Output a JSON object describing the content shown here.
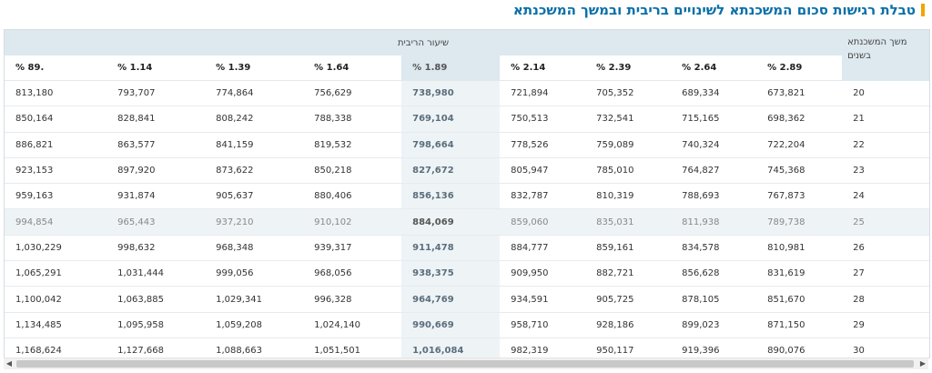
{
  "title": "טבלת רגישות סכום המשכנתא לשינויים בריבית ובמשך המשכנתא",
  "row_header": "משך המשכנתא בשנים",
  "group_header": "שיעור הריבית",
  "rates": [
    "2.89 %",
    "2.64 %",
    "2.39 %",
    "2.14 %",
    "1.89 %",
    "1.64 %",
    "1.39 %",
    "1.14 %",
    ".89 %"
  ],
  "rows": [
    {
      "term": "20",
      "values": [
        "673,821",
        "689,334",
        "705,352",
        "721,894",
        "738,980",
        "756,629",
        "774,864",
        "793,707",
        "813,180"
      ]
    },
    {
      "term": "21",
      "values": [
        "698,362",
        "715,165",
        "732,541",
        "750,513",
        "769,104",
        "788,338",
        "808,242",
        "828,841",
        "850,164"
      ]
    },
    {
      "term": "22",
      "values": [
        "722,204",
        "740,324",
        "759,089",
        "778,526",
        "798,664",
        "819,532",
        "841,159",
        "863,577",
        "886,821"
      ]
    },
    {
      "term": "23",
      "values": [
        "745,368",
        "764,827",
        "785,010",
        "805,947",
        "827,672",
        "850,218",
        "873,622",
        "897,920",
        "923,153"
      ]
    },
    {
      "term": "24",
      "values": [
        "767,873",
        "788,693",
        "810,319",
        "832,787",
        "856,136",
        "880,406",
        "905,637",
        "931,874",
        "959,163"
      ]
    },
    {
      "term": "25",
      "values": [
        "789,738",
        "811,938",
        "835,031",
        "859,060",
        "884,069",
        "910,102",
        "937,210",
        "965,443",
        "994,854"
      ]
    },
    {
      "term": "26",
      "values": [
        "810,981",
        "834,578",
        "859,161",
        "884,777",
        "911,478",
        "939,317",
        "968,348",
        "998,632",
        "1,030,229"
      ]
    },
    {
      "term": "27",
      "values": [
        "831,619",
        "856,628",
        "882,721",
        "909,950",
        "938,375",
        "968,056",
        "999,056",
        "1,031,444",
        "1,065,291"
      ]
    },
    {
      "term": "28",
      "values": [
        "851,670",
        "878,105",
        "905,725",
        "934,591",
        "964,769",
        "996,328",
        "1,029,341",
        "1,063,885",
        "1,100,042"
      ]
    },
    {
      "term": "29",
      "values": [
        "871,150",
        "899,023",
        "928,186",
        "958,710",
        "990,669",
        "1,024,140",
        "1,059,208",
        "1,095,958",
        "1,134,485"
      ]
    },
    {
      "term": "30",
      "values": [
        "890,076",
        "919,396",
        "950,117",
        "982,319",
        "1,016,084",
        "1,051,501",
        "1,088,663",
        "1,127,668",
        "1,168,624"
      ]
    }
  ],
  "highlight_column_index": 4,
  "highlight_row_index": 5,
  "scroll_left_icon": "◀",
  "scroll_right_icon": "▶",
  "colors": {
    "title": "#0a6fa8",
    "accent_bar": "#f0a500",
    "header_bg": "#dde8ef",
    "highlight_bg": "#eef3f6"
  }
}
